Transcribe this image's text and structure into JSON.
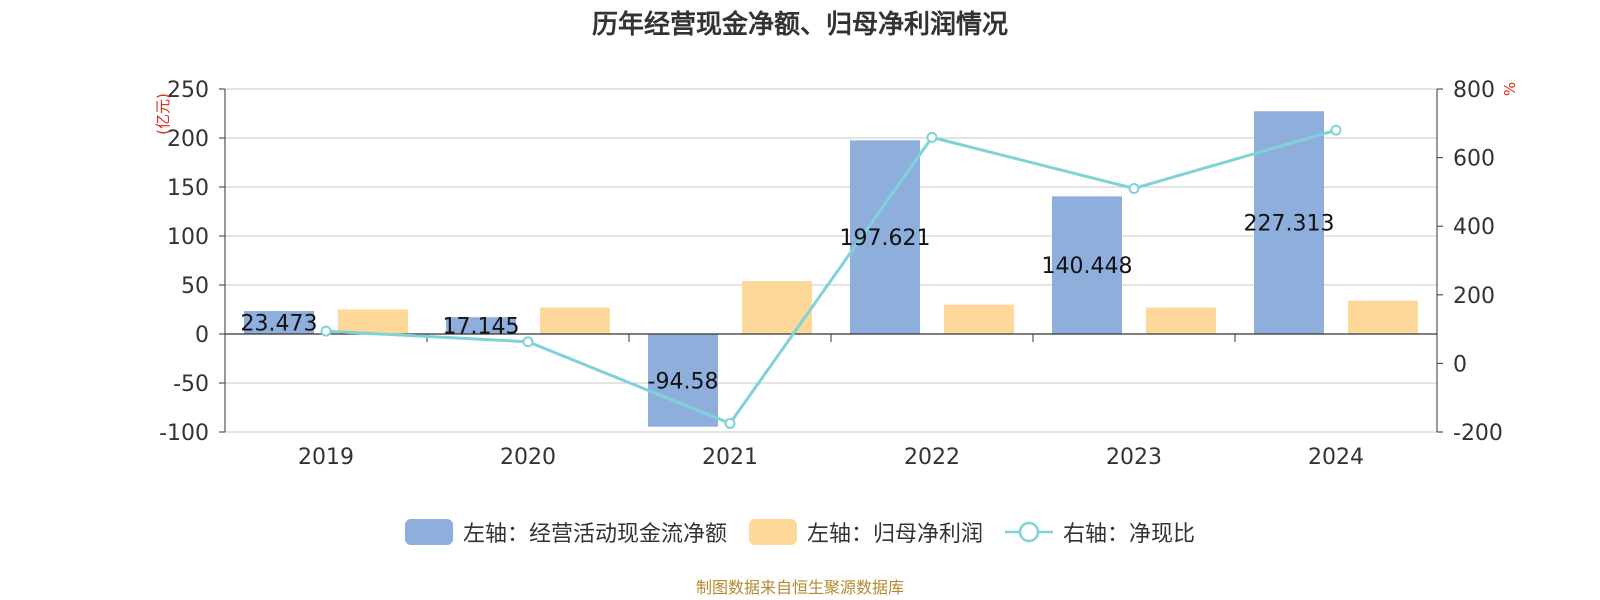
{
  "chart_data": {
    "type": "bar",
    "title": "历年经营现金净额、归母净利润情况",
    "categories": [
      "2019",
      "2020",
      "2021",
      "2022",
      "2023",
      "2024"
    ],
    "left_axis": {
      "unit": "(亿元)",
      "ylim": [
        -100,
        250
      ],
      "ticks": [
        -100,
        -50,
        0,
        50,
        100,
        150,
        200,
        250
      ]
    },
    "right_axis": {
      "unit": "%",
      "ylim": [
        -200,
        800
      ],
      "ticks": [
        -200,
        0,
        200,
        400,
        600,
        800
      ]
    },
    "series": [
      {
        "name": "左轴：经营活动现金流净额",
        "kind": "bar",
        "axis": "left",
        "color": "#8eaedb",
        "values": [
          23.473,
          17.145,
          -94.58,
          197.621,
          140.448,
          227.313
        ],
        "labels": [
          "23.473",
          "17.145",
          "-94.58",
          "197.621",
          "140.448",
          "227.313"
        ]
      },
      {
        "name": "左轴：归母净利润",
        "kind": "bar",
        "axis": "left",
        "color": "#fdd899",
        "values": [
          25,
          27,
          54,
          30,
          27,
          34
        ]
      },
      {
        "name": "右轴：净现比",
        "kind": "line",
        "axis": "right",
        "color": "#7fd3d8",
        "values": [
          94,
          63,
          -175,
          659,
          510,
          680
        ]
      }
    ],
    "grid": true,
    "legend_position": "bottom"
  },
  "source": "制图数据来自恒生聚源数据库"
}
